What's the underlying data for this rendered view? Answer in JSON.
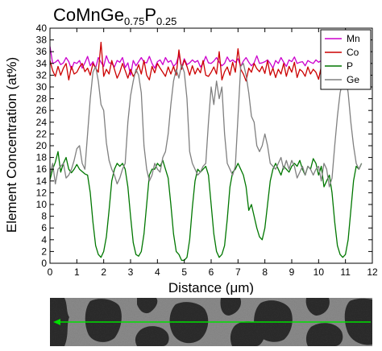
{
  "chart_data": {
    "type": "line",
    "title": {
      "parts": [
        {
          "text": "CoMnGe",
          "sub": false
        },
        {
          "text": "0.75",
          "sub": true
        },
        {
          "text": "P",
          "sub": false
        },
        {
          "text": "0.25",
          "sub": true
        }
      ]
    },
    "xlabel_prefix": "Distance (",
    "xlabel_unit": "μm",
    "xlabel_suffix": ")",
    "ylabel": "Element Concentration (at%)",
    "xlim": [
      0,
      12
    ],
    "ylim": [
      0,
      40
    ],
    "xticks": [
      0,
      1,
      2,
      3,
      4,
      5,
      6,
      7,
      8,
      9,
      10,
      11,
      12
    ],
    "yticks": [
      0,
      2,
      4,
      6,
      8,
      10,
      12,
      14,
      16,
      18,
      20,
      22,
      24,
      26,
      28,
      30,
      32,
      34,
      36,
      38,
      40
    ],
    "grid": false,
    "legend_position": "top-right",
    "x": [
      0.0,
      0.1,
      0.2,
      0.3,
      0.4,
      0.5,
      0.6,
      0.7,
      0.8,
      0.9,
      1.0,
      1.1,
      1.2,
      1.3,
      1.4,
      1.5,
      1.6,
      1.7,
      1.8,
      1.9,
      2.0,
      2.1,
      2.2,
      2.3,
      2.4,
      2.5,
      2.6,
      2.7,
      2.8,
      2.9,
      3.0,
      3.1,
      3.2,
      3.3,
      3.4,
      3.5,
      3.6,
      3.7,
      3.8,
      3.9,
      4.0,
      4.1,
      4.2,
      4.3,
      4.4,
      4.5,
      4.6,
      4.7,
      4.8,
      4.9,
      5.0,
      5.1,
      5.2,
      5.3,
      5.4,
      5.5,
      5.6,
      5.7,
      5.8,
      5.9,
      6.0,
      6.1,
      6.2,
      6.3,
      6.4,
      6.5,
      6.6,
      6.7,
      6.8,
      6.9,
      7.0,
      7.1,
      7.2,
      7.3,
      7.4,
      7.5,
      7.6,
      7.7,
      7.8,
      7.9,
      8.0,
      8.1,
      8.2,
      8.3,
      8.4,
      8.5,
      8.6,
      8.7,
      8.8,
      8.9,
      9.0,
      9.1,
      9.2,
      9.3,
      9.4,
      9.5,
      9.6,
      9.7,
      9.8,
      9.9,
      10.0,
      10.1,
      10.2,
      10.3,
      10.4,
      10.5,
      10.6,
      10.7,
      10.8,
      10.9,
      11.0,
      11.1,
      11.2,
      11.3,
      11.4,
      11.5,
      11.6
    ],
    "series": [
      {
        "name": "Mn",
        "color": "#cc00cc",
        "values": [
          36.9,
          34.0,
          34.2,
          34.6,
          33.8,
          34.1,
          35.0,
          34.3,
          33.0,
          34.2,
          34.0,
          34.5,
          33.2,
          34.1,
          35.2,
          33.6,
          34.3,
          33.2,
          35.0,
          34.2,
          33.5,
          35.3,
          34.1,
          34.0,
          33.4,
          34.5,
          34.2,
          35.0,
          33.3,
          34.1,
          32.0,
          34.5,
          33.6,
          34.3,
          35.0,
          34.2,
          34.1,
          35.2,
          34.0,
          33.2,
          34.3,
          34.6,
          33.8,
          35.0,
          34.2,
          34.5,
          33.5,
          34.0,
          35.5,
          33.3,
          34.8,
          33.8,
          34.1,
          34.6,
          34.2,
          34.5,
          33.4,
          34.0,
          35.2,
          34.1,
          34.0,
          34.4,
          35.0,
          34.2,
          33.6,
          34.0,
          35.1,
          34.3,
          34.6,
          34.2,
          34.8,
          33.5,
          34.4,
          35.0,
          34.2,
          33.6,
          34.1,
          35.3,
          34.0,
          34.1,
          34.3,
          34.6,
          34.0,
          33.2,
          34.5,
          34.0,
          35.0,
          34.2,
          33.5,
          34.6,
          34.3,
          35.1,
          34.0,
          34.2,
          34.3,
          33.6,
          34.5,
          34.2,
          34.0,
          34.6,
          34.2,
          34.5,
          33.5,
          34.3,
          34.0,
          34.6,
          35.2,
          34.1,
          34.5,
          34.0,
          33.6,
          34.4,
          34.6,
          35.0,
          34.2,
          33.4,
          34.3
        ]
      },
      {
        "name": "Co",
        "color": "#cc0000",
        "values": [
          34.5,
          32.8,
          31.8,
          33.5,
          32.0,
          33.2,
          34.0,
          31.2,
          33.5,
          32.2,
          32.5,
          33.4,
          34.0,
          32.6,
          33.2,
          32.0,
          34.0,
          33.2,
          32.5,
          37.6,
          31.8,
          33.0,
          32.2,
          34.5,
          33.0,
          31.5,
          32.5,
          34.0,
          32.8,
          31.5,
          33.0,
          31.8,
          32.5,
          33.8,
          32.2,
          34.5,
          32.0,
          31.2,
          33.5,
          32.4,
          34.0,
          33.2,
          32.5,
          31.8,
          33.4,
          32.2,
          33.5,
          32.0,
          36.3,
          33.0,
          34.6,
          33.5,
          32.0,
          33.6,
          32.2,
          33.2,
          32.4,
          34.5,
          32.0,
          31.8,
          32.5,
          33.4,
          32.2,
          36.0,
          31.2,
          32.6,
          33.4,
          32.0,
          34.2,
          32.5,
          36.5,
          33.0,
          32.2,
          31.0,
          33.2,
          32.5,
          34.0,
          33.1,
          32.6,
          33.5,
          32.3,
          34.5,
          32.0,
          33.2,
          31.6,
          33.0,
          32.2,
          34.0,
          31.8,
          33.5,
          32.5,
          34.2,
          31.6,
          33.0,
          32.6,
          31.8,
          33.4,
          32.2,
          33.0,
          32.5,
          31.3,
          33.5,
          32.0,
          34.0,
          32.2,
          32.8,
          33.6,
          32.0,
          33.0,
          32.6,
          34.0,
          32.2,
          33.5,
          32.0,
          31.5,
          33.0,
          32.2
        ]
      },
      {
        "name": "P",
        "color": "#007700",
        "values": [
          14.2,
          16.0,
          17.2,
          19.0,
          15.5,
          17.0,
          18.0,
          16.0,
          15.4,
          16.0,
          16.8,
          16.0,
          15.6,
          15.2,
          15.0,
          12.0,
          7.0,
          3.0,
          1.5,
          1.0,
          2.0,
          4.5,
          9.0,
          14.0,
          16.0,
          17.0,
          16.5,
          17.0,
          16.0,
          13.0,
          8.0,
          3.5,
          1.5,
          1.2,
          2.0,
          5.0,
          10.0,
          15.0,
          16.0,
          16.0,
          17.0,
          16.5,
          17.5,
          16.0,
          14.5,
          10.0,
          5.0,
          2.0,
          1.5,
          0.5,
          0.5,
          1.0,
          4.0,
          9.5,
          14.0,
          16.0,
          15.5,
          16.0,
          16.5,
          15.0,
          10.0,
          5.0,
          2.0,
          1.0,
          1.5,
          3.0,
          7.5,
          13.0,
          15.5,
          16.0,
          17.0,
          16.0,
          15.0,
          13.0,
          9.0,
          10.0,
          8.0,
          6.0,
          4.5,
          4.0,
          6.0,
          10.0,
          14.0,
          16.0,
          17.0,
          16.0,
          15.0,
          16.5,
          16.0,
          15.5,
          16.5,
          17.0,
          16.5,
          17.5,
          16.0,
          15.0,
          16.5,
          16.0,
          17.8,
          17.0,
          15.0,
          16.5,
          13.0,
          14.0,
          15.0,
          12.0,
          7.0,
          3.0,
          1.5,
          1.0,
          1.5,
          4.0,
          9.0,
          14.0,
          16.5,
          16.0,
          17.0
        ]
      },
      {
        "name": "Ge",
        "color": "#808080",
        "values": [
          15.0,
          17.0,
          13.5,
          16.0,
          16.5,
          17.0,
          14.5,
          15.0,
          16.0,
          17.5,
          19.5,
          20.0,
          17.0,
          16.0,
          22.0,
          28.0,
          32.5,
          33.5,
          31.0,
          27.0,
          26.0,
          20.5,
          17.5,
          16.0,
          15.0,
          13.5,
          14.5,
          16.0,
          17.0,
          24.0,
          28.5,
          31.0,
          33.0,
          32.0,
          29.0,
          20.0,
          16.0,
          14.0,
          15.0,
          17.0,
          16.0,
          15.5,
          18.0,
          19.0,
          22.0,
          27.0,
          31.0,
          33.0,
          31.5,
          33.8,
          32.5,
          28.0,
          19.0,
          17.0,
          16.0,
          15.0,
          15.5,
          16.5,
          17.0,
          24.0,
          30.0,
          27.0,
          31.0,
          28.0,
          30.0,
          22.0,
          17.0,
          16.0,
          15.0,
          16.5,
          25.0,
          33.5,
          34.0,
          32.0,
          29.0,
          25.0,
          24.0,
          20.0,
          19.0,
          20.0,
          22.0,
          20.0,
          17.0,
          16.5,
          16.0,
          17.0,
          18.0,
          16.0,
          17.5,
          16.0,
          17.5,
          16.5,
          14.5,
          15.5,
          16.5,
          15.0,
          16.5,
          16.0,
          15.0,
          16.0,
          16.5,
          14.0,
          17.0,
          16.0,
          13.0,
          14.5,
          20.0,
          25.0,
          29.0,
          31.0,
          32.0,
          29.0,
          24.0,
          20.0,
          17.0,
          16.0,
          17.0
        ]
      }
    ]
  },
  "micrograph": {
    "background": "#8c8c8c",
    "dark_phase_color": "#2e2e2e",
    "scan_line_color": "#00e000"
  }
}
